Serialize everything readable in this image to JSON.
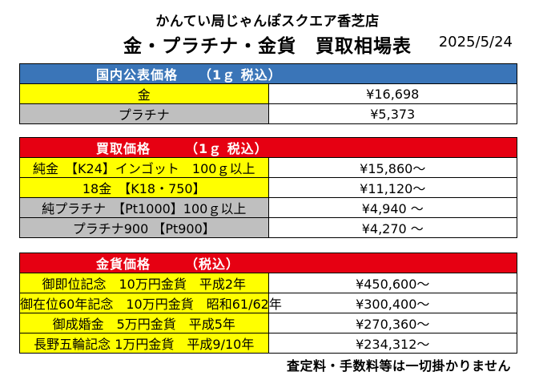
{
  "header": {
    "store_name": "かんてい局じゃんぽスクエア香芝店",
    "title": "金・プラチナ・金貨　買取相場表",
    "date": "2025/5/24"
  },
  "public_price": {
    "heading": "国内公表価格　　（1ｇ 税込）",
    "rows": [
      {
        "label": "金",
        "value": "¥16,698",
        "color": "#ffff00"
      },
      {
        "label": "プラチナ",
        "value": "¥5,373",
        "color": "#bfbfbf"
      }
    ]
  },
  "buy_price": {
    "heading": "買取価格　　　（1ｇ 税込）",
    "rows": [
      {
        "label": "純金　【K24】インゴット　100ｇ以上",
        "value": "¥15,860～",
        "color": "#ffff00"
      },
      {
        "label": "18金　【K18・750】",
        "value": "¥11,120～",
        "color": "#ffff00"
      },
      {
        "label": "純プラチナ　【Pt1000】100ｇ以上",
        "value": "¥4,940 ～",
        "color": "#bfbfbf"
      },
      {
        "label": "プラチナ900 【Pt900】",
        "value": "¥4,270 ～",
        "color": "#bfbfbf"
      }
    ]
  },
  "coin_price": {
    "heading": "金貨価格　　　（税込）",
    "rows": [
      {
        "label": "御即位記念　10万円金貨　平成2年",
        "value": "¥450,600～",
        "color": "#ffff00"
      },
      {
        "label": "御在位60年記念　10万円金貨　昭和61/62年",
        "value": "¥300,400～",
        "color": "#ffff00"
      },
      {
        "label": "御成婚金　5万円金貨　平成5年",
        "value": "¥270,360～",
        "color": "#ffff00"
      },
      {
        "label": "長野五輪記念 1万円金貨　平成9/10年",
        "value": "¥234,312～",
        "color": "#ffff00"
      }
    ]
  },
  "footer_note": "査定料・手数料等は一切掛かりません"
}
